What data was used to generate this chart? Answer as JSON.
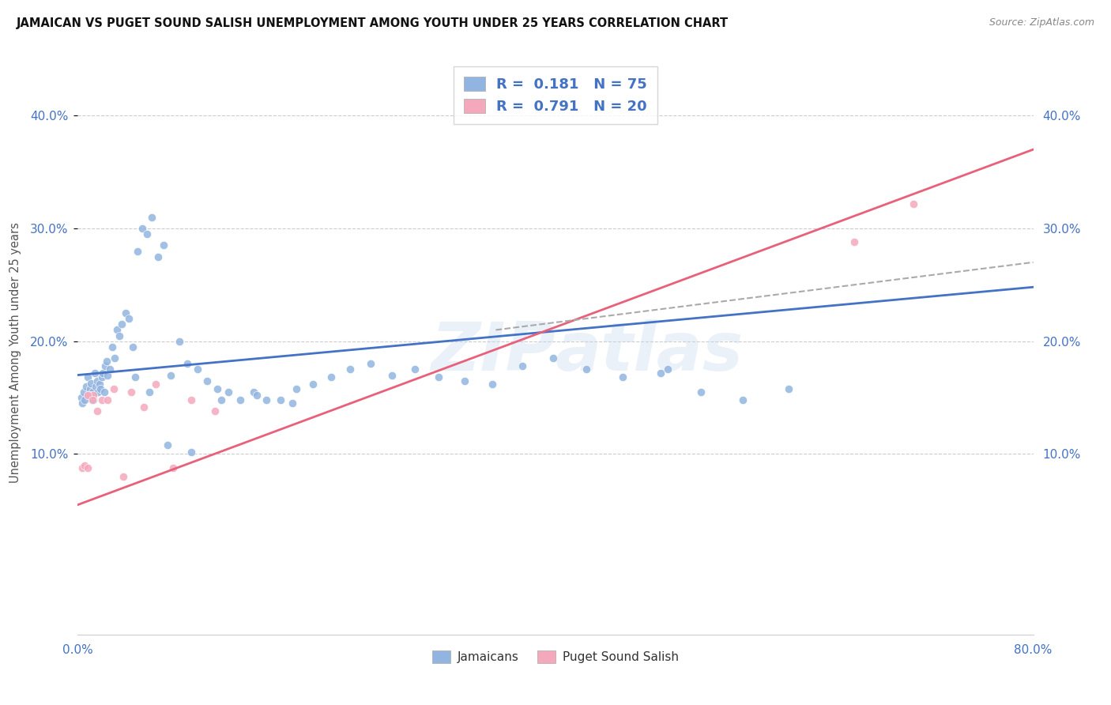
{
  "title": "JAMAICAN VS PUGET SOUND SALISH UNEMPLOYMENT AMONG YOUTH UNDER 25 YEARS CORRELATION CHART",
  "source": "Source: ZipAtlas.com",
  "ylabel": "Unemployment Among Youth under 25 years",
  "watermark": "ZIPatlas",
  "xlim": [
    0.0,
    0.8
  ],
  "ylim": [
    -0.06,
    0.44
  ],
  "yticks": [
    0.1,
    0.2,
    0.3,
    0.4
  ],
  "ytick_labels": [
    "10.0%",
    "20.0%",
    "30.0%",
    "40.0%"
  ],
  "xtick_vals": [
    0.0,
    0.1,
    0.2,
    0.3,
    0.4,
    0.5,
    0.6,
    0.7,
    0.8
  ],
  "xtick_labels": [
    "0.0%",
    "",
    "",
    "",
    "",
    "",
    "",
    "",
    "80.0%"
  ],
  "blue_scatter_color": "#92b4e0",
  "pink_scatter_color": "#f4a8bc",
  "blue_line_color": "#4472c4",
  "pink_line_color": "#e8607a",
  "dashed_line_color": "#aaaaaa",
  "background_color": "#ffffff",
  "grid_color": "#cccccc",
  "tick_color": "#4472c4",
  "ylabel_color": "#555555",
  "title_color": "#111111",
  "source_color": "#888888",
  "watermark_color": "#c8d8f0",
  "jamaicans_x": [
    0.003,
    0.004,
    0.005,
    0.006,
    0.007,
    0.008,
    0.009,
    0.01,
    0.011,
    0.012,
    0.013,
    0.014,
    0.015,
    0.016,
    0.017,
    0.018,
    0.019,
    0.02,
    0.021,
    0.022,
    0.023,
    0.024,
    0.025,
    0.027,
    0.029,
    0.031,
    0.033,
    0.035,
    0.037,
    0.04,
    0.043,
    0.046,
    0.05,
    0.054,
    0.058,
    0.062,
    0.067,
    0.072,
    0.078,
    0.085,
    0.092,
    0.1,
    0.108,
    0.117,
    0.126,
    0.136,
    0.147,
    0.158,
    0.17,
    0.183,
    0.197,
    0.212,
    0.228,
    0.245,
    0.263,
    0.282,
    0.302,
    0.324,
    0.347,
    0.372,
    0.398,
    0.426,
    0.456,
    0.488,
    0.522,
    0.557,
    0.595,
    0.494,
    0.18,
    0.15,
    0.12,
    0.095,
    0.075,
    0.06,
    0.048
  ],
  "jamaicans_y": [
    0.15,
    0.145,
    0.155,
    0.148,
    0.16,
    0.168,
    0.152,
    0.158,
    0.163,
    0.155,
    0.148,
    0.172,
    0.16,
    0.165,
    0.155,
    0.162,
    0.158,
    0.168,
    0.172,
    0.155,
    0.178,
    0.182,
    0.17,
    0.175,
    0.195,
    0.185,
    0.21,
    0.205,
    0.215,
    0.225,
    0.22,
    0.195,
    0.28,
    0.3,
    0.295,
    0.31,
    0.275,
    0.285,
    0.17,
    0.2,
    0.18,
    0.175,
    0.165,
    0.158,
    0.155,
    0.148,
    0.155,
    0.148,
    0.148,
    0.158,
    0.162,
    0.168,
    0.175,
    0.18,
    0.17,
    0.175,
    0.168,
    0.165,
    0.162,
    0.178,
    0.185,
    0.175,
    0.168,
    0.172,
    0.155,
    0.148,
    0.158,
    0.175,
    0.145,
    0.152,
    0.148,
    0.102,
    0.108,
    0.155,
    0.168
  ],
  "salish_x": [
    0.004,
    0.006,
    0.008,
    0.01,
    0.013,
    0.016,
    0.02,
    0.025,
    0.03,
    0.038,
    0.045,
    0.055,
    0.065,
    0.08,
    0.095,
    0.115,
    0.008,
    0.012,
    0.65,
    0.7
  ],
  "salish_y": [
    0.088,
    0.09,
    0.088,
    0.152,
    0.152,
    0.138,
    0.148,
    0.148,
    0.158,
    0.08,
    0.155,
    0.142,
    0.162,
    0.088,
    0.148,
    0.138,
    0.152,
    0.148,
    0.288,
    0.322
  ],
  "blue_line_x0": 0.0,
  "blue_line_x1": 0.8,
  "blue_line_y0": 0.17,
  "blue_line_y1": 0.248,
  "pink_line_x0": 0.0,
  "pink_line_x1": 0.8,
  "pink_line_y0": 0.055,
  "pink_line_y1": 0.37,
  "dash_line_x0": 0.35,
  "dash_line_x1": 0.8,
  "dash_line_y0": 0.21,
  "dash_line_y1": 0.27
}
